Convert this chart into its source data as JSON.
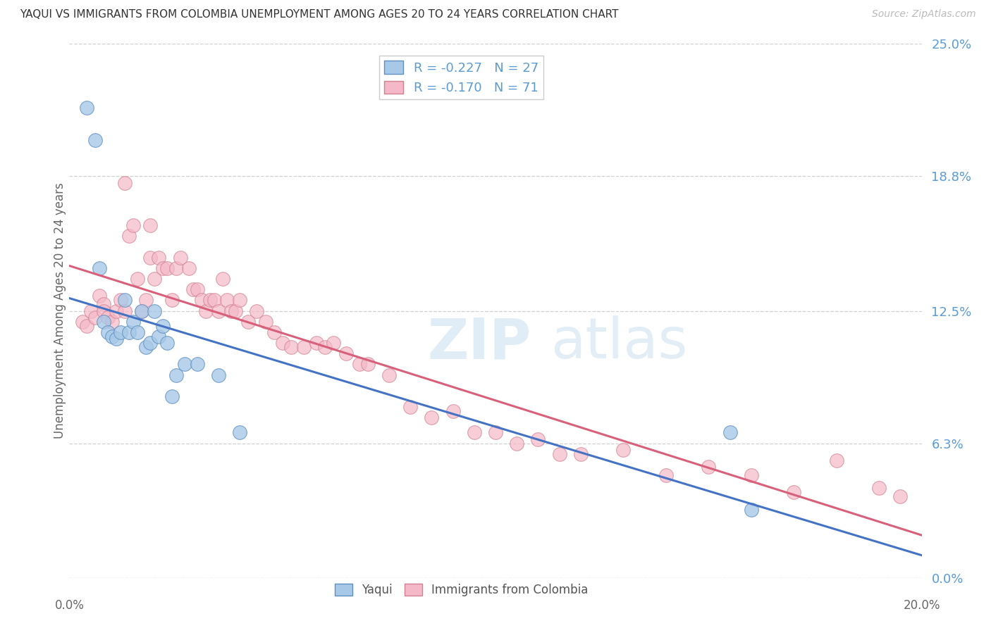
{
  "title": "YAQUI VS IMMIGRANTS FROM COLOMBIA UNEMPLOYMENT AMONG AGES 20 TO 24 YEARS CORRELATION CHART",
  "source": "Source: ZipAtlas.com",
  "ylabel": "Unemployment Among Ages 20 to 24 years",
  "ytick_labels": [
    "0.0%",
    "6.3%",
    "12.5%",
    "18.8%",
    "25.0%"
  ],
  "ytick_values": [
    0.0,
    0.063,
    0.125,
    0.188,
    0.25
  ],
  "xtick_values": [
    0.0,
    0.025,
    0.05,
    0.075,
    0.1,
    0.125,
    0.15,
    0.175,
    0.2
  ],
  "xmin": 0.0,
  "xmax": 0.2,
  "ymin": 0.0,
  "ymax": 0.25,
  "legend1_label": "R = -0.227   N = 27",
  "legend2_label": "R = -0.170   N = 71",
  "series1_name": "Yaqui",
  "series2_name": "Immigrants from Colombia",
  "series1_line_color": "#4472c4",
  "series2_line_color": "#d9607a",
  "series1_marker_face": "#a8c8e8",
  "series2_marker_face": "#f5b8c8",
  "series1_marker_edge": "#6090c0",
  "series2_marker_edge": "#d08090",
  "watermark_color": "#cce4f5",
  "background_color": "#ffffff",
  "grid_color": "#d0d0d0",
  "series1_x": [
    0.004,
    0.006,
    0.007,
    0.008,
    0.009,
    0.01,
    0.011,
    0.012,
    0.013,
    0.014,
    0.015,
    0.016,
    0.017,
    0.018,
    0.019,
    0.02,
    0.021,
    0.022,
    0.023,
    0.024,
    0.025,
    0.027,
    0.03,
    0.035,
    0.04,
    0.155,
    0.16
  ],
  "series1_y": [
    0.22,
    0.205,
    0.145,
    0.12,
    0.115,
    0.113,
    0.112,
    0.115,
    0.13,
    0.115,
    0.12,
    0.115,
    0.125,
    0.108,
    0.11,
    0.125,
    0.113,
    0.118,
    0.11,
    0.085,
    0.095,
    0.1,
    0.1,
    0.095,
    0.068,
    0.068,
    0.032
  ],
  "series2_x": [
    0.003,
    0.004,
    0.005,
    0.006,
    0.007,
    0.008,
    0.008,
    0.009,
    0.01,
    0.011,
    0.012,
    0.013,
    0.013,
    0.014,
    0.015,
    0.016,
    0.017,
    0.018,
    0.019,
    0.019,
    0.02,
    0.021,
    0.022,
    0.023,
    0.024,
    0.025,
    0.026,
    0.028,
    0.029,
    0.03,
    0.031,
    0.032,
    0.033,
    0.034,
    0.035,
    0.036,
    0.037,
    0.038,
    0.039,
    0.04,
    0.042,
    0.044,
    0.046,
    0.048,
    0.05,
    0.052,
    0.055,
    0.058,
    0.06,
    0.062,
    0.065,
    0.068,
    0.07,
    0.075,
    0.08,
    0.085,
    0.09,
    0.095,
    0.1,
    0.105,
    0.11,
    0.115,
    0.12,
    0.13,
    0.14,
    0.15,
    0.16,
    0.17,
    0.18,
    0.19,
    0.195
  ],
  "series2_y": [
    0.12,
    0.118,
    0.125,
    0.122,
    0.132,
    0.128,
    0.125,
    0.122,
    0.12,
    0.125,
    0.13,
    0.125,
    0.185,
    0.16,
    0.165,
    0.14,
    0.125,
    0.13,
    0.15,
    0.165,
    0.14,
    0.15,
    0.145,
    0.145,
    0.13,
    0.145,
    0.15,
    0.145,
    0.135,
    0.135,
    0.13,
    0.125,
    0.13,
    0.13,
    0.125,
    0.14,
    0.13,
    0.125,
    0.125,
    0.13,
    0.12,
    0.125,
    0.12,
    0.115,
    0.11,
    0.108,
    0.108,
    0.11,
    0.108,
    0.11,
    0.105,
    0.1,
    0.1,
    0.095,
    0.08,
    0.075,
    0.078,
    0.068,
    0.068,
    0.063,
    0.065,
    0.058,
    0.058,
    0.06,
    0.048,
    0.052,
    0.048,
    0.04,
    0.055,
    0.042,
    0.038
  ]
}
